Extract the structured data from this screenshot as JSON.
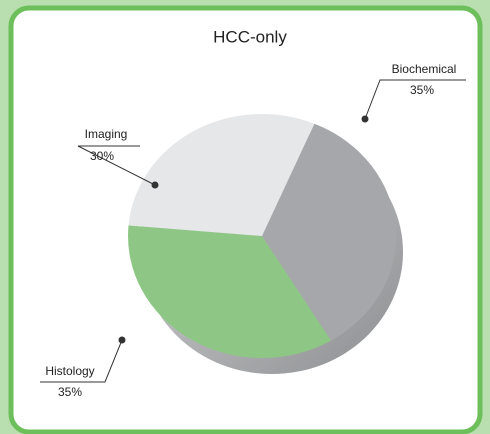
{
  "chart_data": {
    "type": "pie",
    "title": "HCC-only",
    "categories": [
      "Biochemical",
      "Histology",
      "Imaging"
    ],
    "values": [
      35,
      35,
      30
    ],
    "value_labels": [
      "35%",
      "35%",
      "30%"
    ],
    "colors": [
      "#a6a7aa",
      "#8ec785",
      "#e6e7e8"
    ]
  }
}
